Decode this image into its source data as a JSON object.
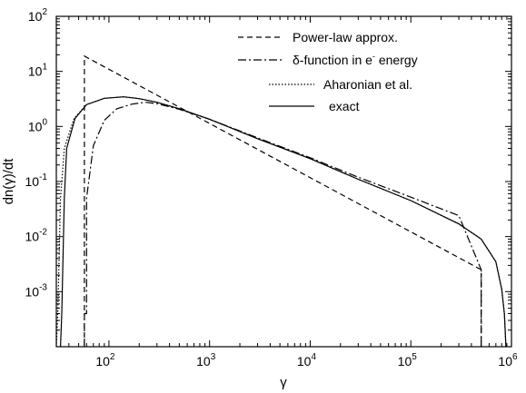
{
  "chart_data": {
    "type": "line",
    "title": "",
    "xlabel": "γ",
    "ylabel": "dn(γ)/dt",
    "xscale": "log",
    "yscale": "log",
    "xlim": [
      30,
      1000000
    ],
    "ylim": [
      0.0001,
      100
    ],
    "grid": false,
    "legend_position": "top-right",
    "x_ticks": [
      {
        "value": 100,
        "base": "10",
        "exp": "2"
      },
      {
        "value": 1000,
        "base": "10",
        "exp": "3"
      },
      {
        "value": 10000,
        "base": "10",
        "exp": "4"
      },
      {
        "value": 100000,
        "base": "10",
        "exp": "5"
      },
      {
        "value": 1000000,
        "base": "10",
        "exp": "6"
      }
    ],
    "y_ticks": [
      {
        "value": 0.001,
        "base": "10",
        "exp": "-3"
      },
      {
        "value": 0.01,
        "base": "10",
        "exp": "-2"
      },
      {
        "value": 0.1,
        "base": "10",
        "exp": "-1"
      },
      {
        "value": 1,
        "base": "10",
        "exp": "0"
      },
      {
        "value": 10,
        "base": "10",
        "exp": "1"
      },
      {
        "value": 100,
        "base": "10",
        "exp": "2"
      }
    ],
    "series": [
      {
        "name": "Power-law approx.",
        "dash": "6,4",
        "points": [
          [
            57,
            0.0001
          ],
          [
            57,
            19
          ],
          [
            500000,
            0.0025
          ],
          [
            500000,
            0.0001
          ]
        ]
      },
      {
        "name": "δ-function in e",
        "name_sup": "-",
        "name_suffix": " energy",
        "dash": "9,3,2,3",
        "points": [
          [
            57,
            0.0001
          ],
          [
            57,
            0.0004
          ],
          [
            60,
            0.0004
          ],
          [
            60,
            0.05
          ],
          [
            70,
            0.45
          ],
          [
            90,
            1.3
          ],
          [
            120,
            2.1
          ],
          [
            170,
            2.55
          ],
          [
            230,
            2.75
          ],
          [
            300,
            2.6
          ],
          [
            500,
            2.05
          ],
          [
            1000,
            1.35
          ],
          [
            3000,
            0.62
          ],
          [
            10000,
            0.27
          ],
          [
            30000,
            0.12
          ],
          [
            100000,
            0.052
          ],
          [
            300000,
            0.024
          ],
          [
            500000,
            0.0025
          ],
          [
            500000,
            0.0001
          ]
        ]
      },
      {
        "name": "Aharonian et al.",
        "dash": "1.5,2",
        "points": [
          [
            30,
            0.0001
          ],
          [
            31,
            0.0004
          ],
          [
            33,
            0.05
          ],
          [
            36,
            0.4
          ],
          [
            45,
            1.4
          ],
          [
            60,
            2.5
          ],
          [
            90,
            3.25
          ],
          [
            140,
            3.45
          ],
          [
            200,
            3.2
          ],
          [
            300,
            2.75
          ],
          [
            500,
            2.1
          ],
          [
            1000,
            1.35
          ],
          [
            3000,
            0.6
          ],
          [
            10000,
            0.26
          ],
          [
            30000,
            0.11
          ],
          [
            100000,
            0.045
          ],
          [
            300000,
            0.017
          ],
          [
            500000,
            0.009
          ],
          [
            700000,
            0.0035
          ],
          [
            800000,
            0.0011
          ],
          [
            850000,
            0.0004
          ],
          [
            880000,
            0.0001
          ]
        ]
      },
      {
        "name": "exact",
        "dash": "",
        "points": [
          [
            33,
            0.0001
          ],
          [
            34,
            0.0004
          ],
          [
            36,
            0.05
          ],
          [
            38,
            0.4
          ],
          [
            46,
            1.4
          ],
          [
            60,
            2.5
          ],
          [
            90,
            3.25
          ],
          [
            140,
            3.45
          ],
          [
            200,
            3.2
          ],
          [
            300,
            2.75
          ],
          [
            500,
            2.1
          ],
          [
            1000,
            1.35
          ],
          [
            3000,
            0.6
          ],
          [
            10000,
            0.26
          ],
          [
            30000,
            0.11
          ],
          [
            100000,
            0.045
          ],
          [
            300000,
            0.017
          ],
          [
            500000,
            0.009
          ],
          [
            700000,
            0.0035
          ],
          [
            800000,
            0.0011
          ],
          [
            850000,
            0.0004
          ],
          [
            880000,
            0.0001
          ]
        ]
      }
    ]
  }
}
